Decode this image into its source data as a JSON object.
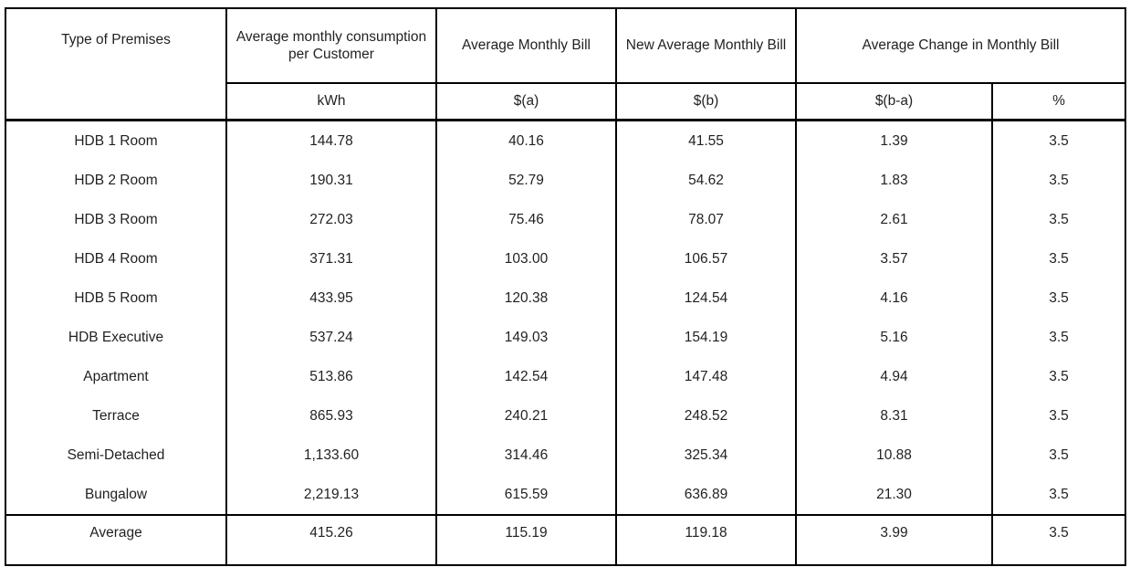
{
  "table": {
    "header": {
      "col_premises": "Type of Premises",
      "col_consumption": "Average monthly consumption per Customer",
      "col_avg_bill": "Average Monthly Bill",
      "col_new_bill": "New Average Monthly Bill",
      "col_change": "Average Change in Monthly Bill",
      "unit_kwh": "kWh",
      "unit_a": "$(a)",
      "unit_b": "$(b)",
      "unit_b_minus_a": "$(b-a)",
      "unit_percent": "%"
    },
    "rows": [
      {
        "premises": "HDB 1 Room",
        "kwh": "144.78",
        "bill_a": "40.16",
        "bill_b": "41.55",
        "change_amt": "1.39",
        "change_pct": "3.5"
      },
      {
        "premises": "HDB 2 Room",
        "kwh": "190.31",
        "bill_a": "52.79",
        "bill_b": "54.62",
        "change_amt": "1.83",
        "change_pct": "3.5"
      },
      {
        "premises": "HDB 3 Room",
        "kwh": "272.03",
        "bill_a": "75.46",
        "bill_b": "78.07",
        "change_amt": "2.61",
        "change_pct": "3.5"
      },
      {
        "premises": "HDB 4 Room",
        "kwh": "371.31",
        "bill_a": "103.00",
        "bill_b": "106.57",
        "change_amt": "3.57",
        "change_pct": "3.5"
      },
      {
        "premises": "HDB 5 Room",
        "kwh": "433.95",
        "bill_a": "120.38",
        "bill_b": "124.54",
        "change_amt": "4.16",
        "change_pct": "3.5"
      },
      {
        "premises": "HDB Executive",
        "kwh": "537.24",
        "bill_a": "149.03",
        "bill_b": "154.19",
        "change_amt": "5.16",
        "change_pct": "3.5"
      },
      {
        "premises": "Apartment",
        "kwh": "513.86",
        "bill_a": "142.54",
        "bill_b": "147.48",
        "change_amt": "4.94",
        "change_pct": "3.5"
      },
      {
        "premises": "Terrace",
        "kwh": "865.93",
        "bill_a": "240.21",
        "bill_b": "248.52",
        "change_amt": "8.31",
        "change_pct": "3.5"
      },
      {
        "premises": "Semi-Detached",
        "kwh": "1,133.60",
        "bill_a": "314.46",
        "bill_b": "325.34",
        "change_amt": "10.88",
        "change_pct": "3.5"
      },
      {
        "premises": "Bungalow",
        "kwh": "2,219.13",
        "bill_a": "615.59",
        "bill_b": "636.89",
        "change_amt": "21.30",
        "change_pct": "3.5"
      }
    ],
    "average_row": {
      "premises": "Average",
      "kwh": "415.26",
      "bill_a": "115.19",
      "bill_b": "119.18",
      "change_amt": "3.99",
      "change_pct": "3.5"
    },
    "colors": {
      "border": "#000000",
      "text": "#231f20",
      "background": "#ffffff"
    }
  }
}
